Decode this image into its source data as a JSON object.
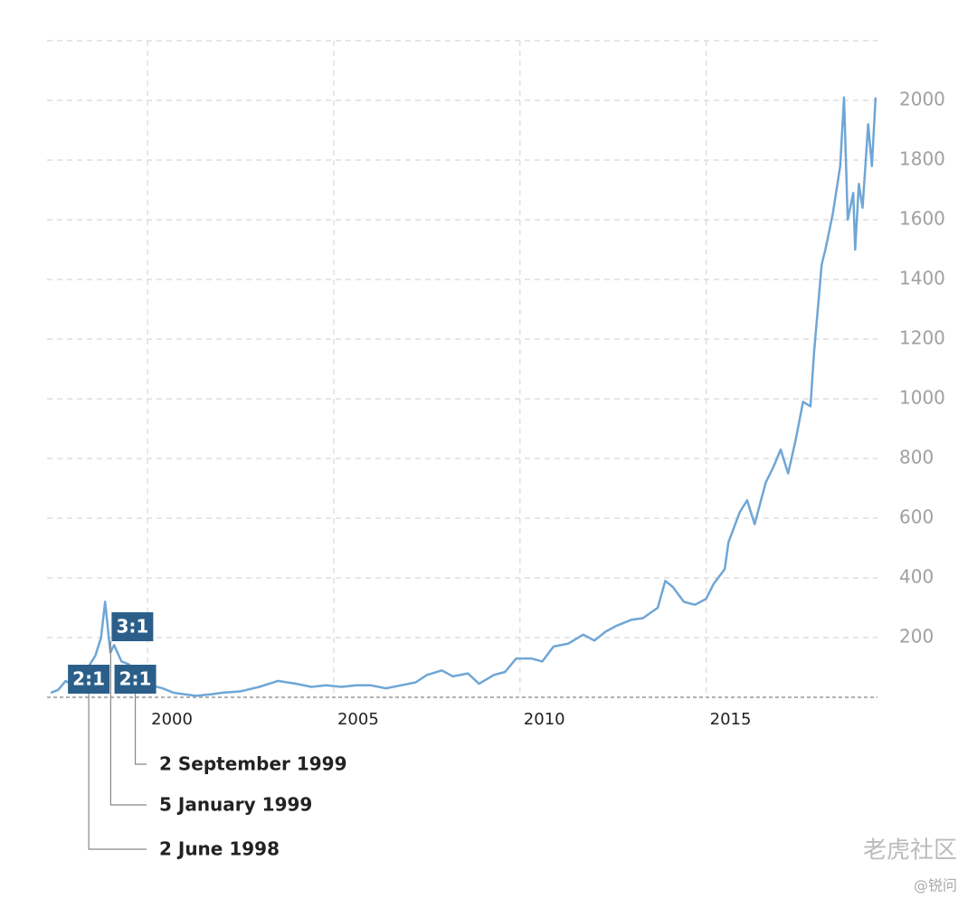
{
  "chart_data": {
    "type": "line",
    "color": "#6fa6d6",
    "x": [
      1997.4,
      1997.6,
      1997.8,
      1998.0,
      1998.2,
      1998.4,
      1998.6,
      1998.75,
      1998.86,
      1999.0,
      1999.1,
      1999.3,
      1999.5,
      1999.7,
      1999.9,
      2000.1,
      2000.4,
      2000.7,
      2001.0,
      2001.3,
      2001.7,
      2002.0,
      2002.5,
      2003.0,
      2003.5,
      2004.0,
      2004.4,
      2004.8,
      2005.2,
      2005.6,
      2006.0,
      2006.4,
      2006.8,
      2007.2,
      2007.5,
      2007.9,
      2008.2,
      2008.6,
      2008.9,
      2009.3,
      2009.6,
      2009.9,
      2010.3,
      2010.6,
      2010.9,
      2011.3,
      2011.7,
      2012.0,
      2012.3,
      2012.6,
      2013.0,
      2013.3,
      2013.7,
      2013.9,
      2014.1,
      2014.4,
      2014.7,
      2015.0,
      2015.2,
      2015.5,
      2015.6,
      2015.9,
      2016.1,
      2016.3,
      2016.6,
      2016.8,
      2017.0,
      2017.2,
      2017.4,
      2017.6,
      2017.8,
      2017.9,
      2018.1,
      2018.2,
      2018.4,
      2018.6,
      2018.7,
      2018.8,
      2018.95,
      2019.0,
      2019.1,
      2019.2,
      2019.35,
      2019.45,
      2019.55
    ],
    "values": [
      15,
      25,
      55,
      40,
      55,
      100,
      140,
      200,
      320,
      150,
      175,
      120,
      110,
      60,
      45,
      40,
      30,
      15,
      10,
      5,
      10,
      15,
      20,
      35,
      55,
      45,
      35,
      40,
      35,
      40,
      40,
      30,
      40,
      50,
      75,
      90,
      70,
      80,
      45,
      75,
      85,
      130,
      130,
      120,
      170,
      180,
      210,
      190,
      220,
      240,
      260,
      265,
      300,
      390,
      370,
      320,
      310,
      330,
      380,
      430,
      520,
      620,
      660,
      580,
      720,
      770,
      830,
      750,
      860,
      990,
      975,
      1160,
      1450,
      1500,
      1620,
      1780,
      2010,
      1600,
      1690,
      1500,
      1720,
      1640,
      1920,
      1780,
      2010
    ],
    "xlim": [
      1997.3,
      2019.6
    ],
    "xticks": [
      2000,
      2005,
      2010,
      2015
    ],
    "ylim": [
      0,
      2200
    ],
    "yticks": [
      200,
      400,
      600,
      800,
      1000,
      1200,
      1400,
      1600,
      1800,
      2000
    ],
    "grid": true,
    "annotations": [
      {
        "x": 1998.42,
        "label": "2:1",
        "date": "2 June 1998"
      },
      {
        "x": 1999.01,
        "label": "3:1",
        "date": "5 January 1999"
      },
      {
        "x": 1999.67,
        "label": "2:1",
        "date": "2 September 1999"
      }
    ],
    "watermark": "老虎社区",
    "watermark_handle": "@锐问"
  }
}
